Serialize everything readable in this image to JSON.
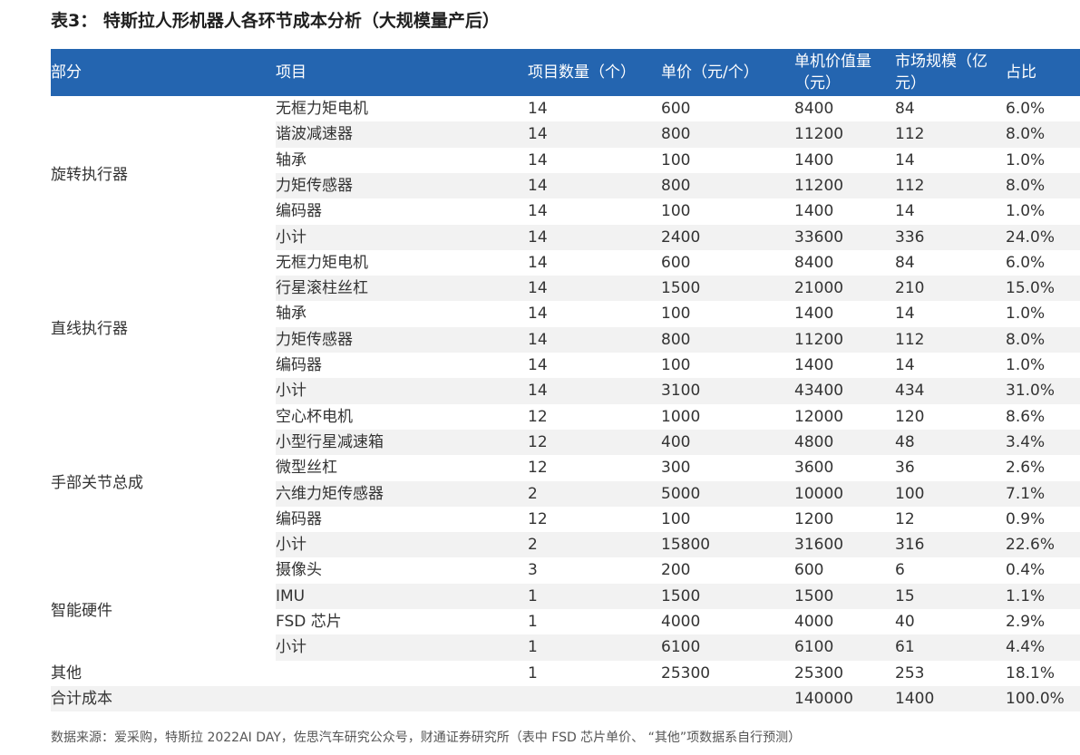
{
  "title": "表3： 特斯拉人形机器人各环节成本分析（大规模量产后）",
  "header": [
    "部分",
    "项目",
    "项目数量（个）",
    "单价（元/个）",
    "单机价值量（元）",
    "市场规模（亿元）",
    "占比"
  ],
  "groups": [
    {
      "name": "旋转执行器",
      "rows": [
        [
          "无框力矩电机",
          "14",
          "600",
          "8400",
          "84",
          "6.0%"
        ],
        [
          "谐波减速器",
          "14",
          "800",
          "11200",
          "112",
          "8.0%"
        ],
        [
          "轴承",
          "14",
          "100",
          "1400",
          "14",
          "1.0%"
        ],
        [
          "力矩传感器",
          "14",
          "800",
          "11200",
          "112",
          "8.0%"
        ],
        [
          "编码器",
          "14",
          "100",
          "1400",
          "14",
          "1.0%"
        ],
        [
          "小计",
          "14",
          "2400",
          "33600",
          "336",
          "24.0%"
        ]
      ]
    },
    {
      "name": "直线执行器",
      "rows": [
        [
          "无框力矩电机",
          "14",
          "600",
          "8400",
          "84",
          "6.0%"
        ],
        [
          "行星滚柱丝杠",
          "14",
          "1500",
          "21000",
          "210",
          "15.0%"
        ],
        [
          "轴承",
          "14",
          "100",
          "1400",
          "14",
          "1.0%"
        ],
        [
          "力矩传感器",
          "14",
          "800",
          "11200",
          "112",
          "8.0%"
        ],
        [
          "编码器",
          "14",
          "100",
          "1400",
          "14",
          "1.0%"
        ],
        [
          "小计",
          "14",
          "3100",
          "43400",
          "434",
          "31.0%"
        ]
      ]
    },
    {
      "name": "手部关节总成",
      "rows": [
        [
          "空心杯电机",
          "12",
          "1000",
          "12000",
          "120",
          "8.6%"
        ],
        [
          "小型行星减速箱",
          "12",
          "400",
          "4800",
          "48",
          "3.4%"
        ],
        [
          "微型丝杠",
          "12",
          "300",
          "3600",
          "36",
          "2.6%"
        ],
        [
          "六维力矩传感器",
          "2",
          "5000",
          "10000",
          "100",
          "7.1%"
        ],
        [
          "编码器",
          "12",
          "100",
          "1200",
          "12",
          "0.9%"
        ],
        [
          "小计",
          "2",
          "15800",
          "31600",
          "316",
          "22.6%"
        ]
      ]
    },
    {
      "name": "智能硬件",
      "rows": [
        [
          "摄像头",
          "3",
          "200",
          "600",
          "6",
          "0.4%"
        ],
        [
          "IMU",
          "1",
          "1500",
          "1500",
          "15",
          "1.1%"
        ],
        [
          "FSD 芯片",
          "1",
          "4000",
          "4000",
          "40",
          "2.9%"
        ],
        [
          "小计",
          "1",
          "6100",
          "6100",
          "61",
          "4.4%"
        ]
      ]
    }
  ],
  "other": {
    "name": "其他",
    "values": [
      "",
      "1",
      "25300",
      "25300",
      "253",
      "18.1%"
    ]
  },
  "total": {
    "name": "合计成本",
    "values": [
      "",
      "",
      "",
      "140000",
      "1400",
      "100.0%"
    ]
  },
  "source": "数据来源：爱采购，特斯拉 2022AI DAY，佐思汽车研究公众号，财通证券研究所（表中 FSD 芯片单价、 “其他”项数据系自行预测）"
}
